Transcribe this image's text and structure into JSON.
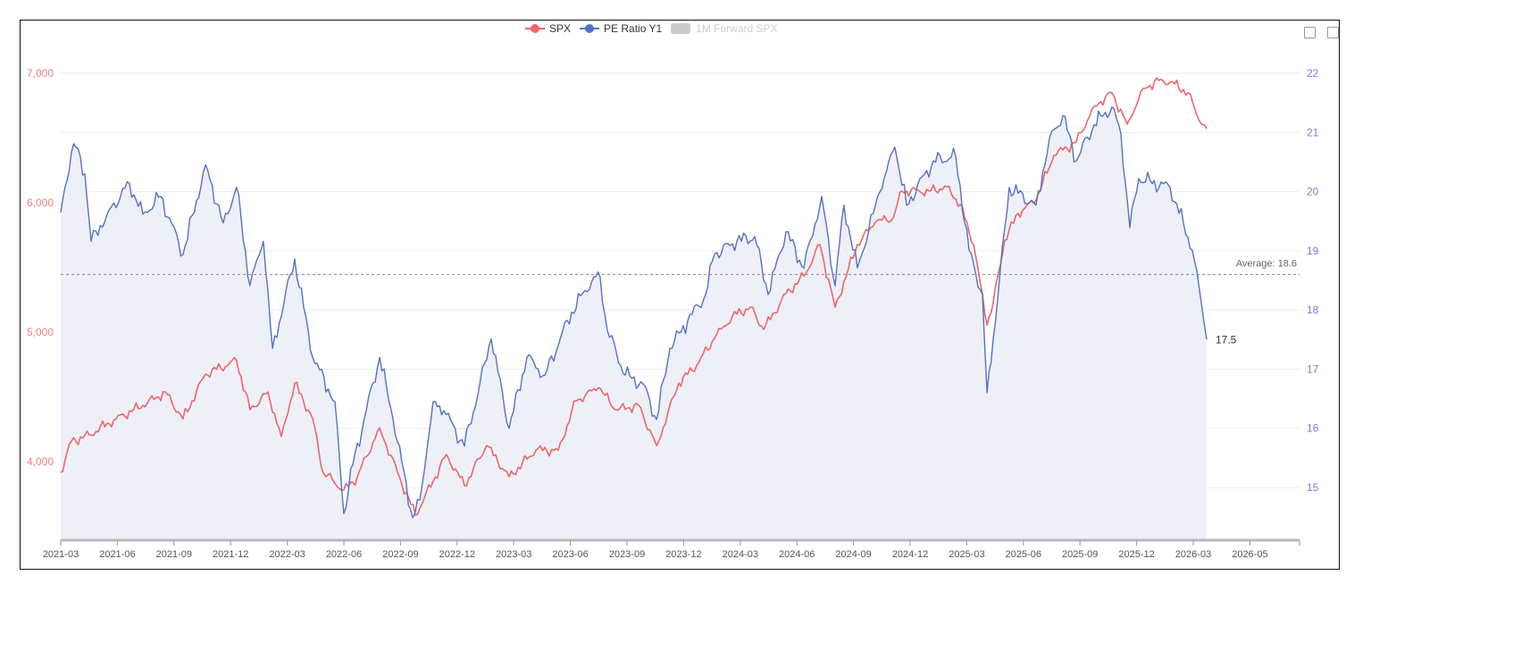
{
  "chart_data": {
    "type": "line",
    "x_unit": "months since 2021-03",
    "legend": [
      {
        "name": "SPX",
        "color": "#ee6666",
        "active": true
      },
      {
        "name": "PE Ratio Y1",
        "color": "#5470c6",
        "active": true
      },
      {
        "name": "1M Forward SPX",
        "color": "#cccccc",
        "active": false
      }
    ],
    "x_ticks": [
      "2021-03",
      "2021-06",
      "2021-09",
      "2021-12",
      "2022-03",
      "2022-06",
      "2022-09",
      "2022-12",
      "2023-03",
      "2023-06",
      "2023-09",
      "2023-12",
      "2024-03",
      "2024-06",
      "2024-09",
      "2024-12",
      "2025-03",
      "2025-06",
      "2025-09",
      "2025-12",
      "2026-03",
      "2026-05"
    ],
    "y_left": {
      "ticks": [
        "4,000",
        "5,000",
        "6,000",
        "7,000"
      ],
      "tick_values": [
        4000,
        5000,
        6000,
        7000
      ],
      "range": [
        3393,
        7000
      ],
      "color": "#f08080"
    },
    "y_right": {
      "ticks": [
        "15",
        "16",
        "17",
        "18",
        "19",
        "20",
        "21",
        "22"
      ],
      "tick_values": [
        15,
        16,
        17,
        18,
        19,
        20,
        21,
        22
      ],
      "range": [
        14.11,
        22
      ],
      "color": "#6f84d2"
    },
    "average": {
      "value": 18.6,
      "label": "Average: 18.6"
    },
    "end_label": "17.5",
    "series": [
      {
        "name": "SPX",
        "axis": "left",
        "color": "#ee6666",
        "points": [
          [
            0,
            3917
          ],
          [
            0.57,
            4158
          ],
          [
            1.51,
            4207
          ],
          [
            2.93,
            4331
          ],
          [
            4.35,
            4434
          ],
          [
            5.54,
            4538
          ],
          [
            6.48,
            4331
          ],
          [
            7.67,
            4676
          ],
          [
            9.32,
            4779
          ],
          [
            10.03,
            4400
          ],
          [
            10.98,
            4538
          ],
          [
            11.69,
            4193
          ],
          [
            12.4,
            4607
          ],
          [
            13.35,
            4331
          ],
          [
            13.91,
            3917
          ],
          [
            15,
            3779
          ],
          [
            15.71,
            3883
          ],
          [
            16.9,
            4262
          ],
          [
            17.84,
            3917
          ],
          [
            18.79,
            3586
          ],
          [
            19.73,
            3848
          ],
          [
            20.44,
            4055
          ],
          [
            21.39,
            3814
          ],
          [
            22.57,
            4124
          ],
          [
            23.76,
            3883
          ],
          [
            25.18,
            4089
          ],
          [
            26.36,
            4089
          ],
          [
            27.31,
            4469
          ],
          [
            28.49,
            4572
          ],
          [
            29.44,
            4400
          ],
          [
            30.62,
            4434
          ],
          [
            31.57,
            4124
          ],
          [
            32.75,
            4607
          ],
          [
            33.7,
            4745
          ],
          [
            34.64,
            4952
          ],
          [
            35.59,
            5124
          ],
          [
            36.54,
            5193
          ],
          [
            37.25,
            5021
          ],
          [
            38.43,
            5296
          ],
          [
            39.38,
            5434
          ],
          [
            40.23,
            5676
          ],
          [
            41.03,
            5193
          ],
          [
            42.21,
            5676
          ],
          [
            43.16,
            5848
          ],
          [
            44.11,
            5883
          ],
          [
            44.58,
            6090
          ],
          [
            46,
            6090
          ],
          [
            46.95,
            6124
          ],
          [
            47.66,
            5986
          ],
          [
            48.37,
            5676
          ],
          [
            49.08,
            5055
          ],
          [
            49.41,
            5228
          ],
          [
            50.02,
            5710
          ],
          [
            50.73,
            5917
          ],
          [
            51.68,
            6021
          ],
          [
            52.63,
            6366
          ],
          [
            53.81,
            6469
          ],
          [
            54.76,
            6745
          ],
          [
            55.7,
            6848
          ],
          [
            56.51,
            6607
          ],
          [
            57.36,
            6883
          ],
          [
            58.31,
            6952
          ],
          [
            59.02,
            6917
          ],
          [
            59.73,
            6848
          ],
          [
            60.44,
            6607
          ],
          [
            60.72,
            6572
          ]
        ]
      },
      {
        "name": "PE Ratio Y1",
        "axis": "right",
        "color": "#5470c6",
        "area": true,
        "points": [
          [
            0,
            19.65
          ],
          [
            0.57,
            20.67
          ],
          [
            0.8,
            20.75
          ],
          [
            1.28,
            20.3
          ],
          [
            1.61,
            19.16
          ],
          [
            2.46,
            19.62
          ],
          [
            3.64,
            20.14
          ],
          [
            4.35,
            19.62
          ],
          [
            5.3,
            19.92
          ],
          [
            6.48,
            18.94
          ],
          [
            7.67,
            20.45
          ],
          [
            8.61,
            19.47
          ],
          [
            9.32,
            20.07
          ],
          [
            10.03,
            18.41
          ],
          [
            10.74,
            19.16
          ],
          [
            11.22,
            17.35
          ],
          [
            12.4,
            18.86
          ],
          [
            13.35,
            17.2
          ],
          [
            14.53,
            16.45
          ],
          [
            15,
            14.56
          ],
          [
            15.48,
            15.39
          ],
          [
            16.9,
            17.2
          ],
          [
            17.61,
            16.15
          ],
          [
            18.65,
            14.49
          ],
          [
            19.03,
            14.79
          ],
          [
            19.73,
            16.45
          ],
          [
            20.3,
            16.3
          ],
          [
            21.39,
            15.7
          ],
          [
            22.81,
            17.51
          ],
          [
            23.76,
            16
          ],
          [
            24.7,
            17.2
          ],
          [
            25.65,
            16.9
          ],
          [
            27.07,
            17.96
          ],
          [
            28.25,
            18.56
          ],
          [
            28.58,
            18.56
          ],
          [
            28.96,
            17.66
          ],
          [
            29.91,
            16.9
          ],
          [
            30.86,
            16.75
          ],
          [
            31.57,
            16.15
          ],
          [
            32.28,
            17.35
          ],
          [
            33.22,
            17.81
          ],
          [
            34.17,
            18.26
          ],
          [
            34.64,
            18.94
          ],
          [
            35.83,
            19.16
          ],
          [
            36.77,
            19.24
          ],
          [
            37.48,
            18.26
          ],
          [
            38.43,
            19.32
          ],
          [
            39.38,
            18.71
          ],
          [
            40.32,
            19.92
          ],
          [
            41.03,
            18.41
          ],
          [
            41.5,
            19.77
          ],
          [
            42.21,
            18.71
          ],
          [
            43.4,
            19.99
          ],
          [
            44.2,
            20.75
          ],
          [
            44.82,
            19.77
          ],
          [
            46.24,
            20.52
          ],
          [
            47.42,
            20.6
          ],
          [
            48.13,
            19.01
          ],
          [
            48.84,
            18.26
          ],
          [
            49.08,
            16.6
          ],
          [
            49.41,
            17.51
          ],
          [
            50.26,
            20.07
          ],
          [
            51.68,
            19.77
          ],
          [
            52.39,
            20.9
          ],
          [
            53.1,
            21.28
          ],
          [
            53.81,
            20.52
          ],
          [
            54.76,
            21.13
          ],
          [
            55.7,
            21.43
          ],
          [
            56.18,
            20.97
          ],
          [
            56.65,
            19.39
          ],
          [
            57.12,
            20.22
          ],
          [
            58.78,
            20.07
          ],
          [
            59.49,
            19.47
          ],
          [
            59.96,
            19.01
          ],
          [
            60.44,
            18.11
          ],
          [
            60.72,
            17.5
          ]
        ]
      }
    ]
  }
}
